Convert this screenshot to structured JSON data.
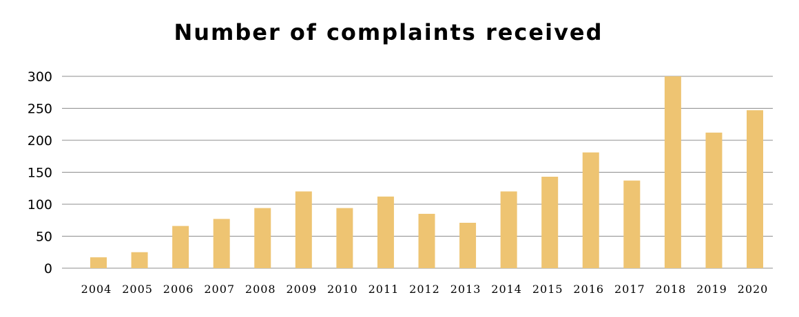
{
  "chart_data": {
    "type": "bar",
    "title": "Number of complaints received",
    "xlabel": "",
    "ylabel": "",
    "categories": [
      "2004",
      "2005",
      "2006",
      "2007",
      "2008",
      "2009",
      "2010",
      "2011",
      "2012",
      "2013",
      "2014",
      "2015",
      "2016",
      "2017",
      "2018",
      "2019",
      "2020"
    ],
    "values": [
      17,
      25,
      66,
      77,
      94,
      120,
      94,
      112,
      85,
      71,
      120,
      143,
      181,
      137,
      300,
      212,
      247
    ],
    "ylim": [
      0,
      300
    ],
    "yticks": [
      "0",
      "50",
      "100",
      "150",
      "200",
      "250",
      "300"
    ],
    "grid": true,
    "legend": "none",
    "bar_color": "#EEC472",
    "grid_color": "#8C8C8C"
  }
}
